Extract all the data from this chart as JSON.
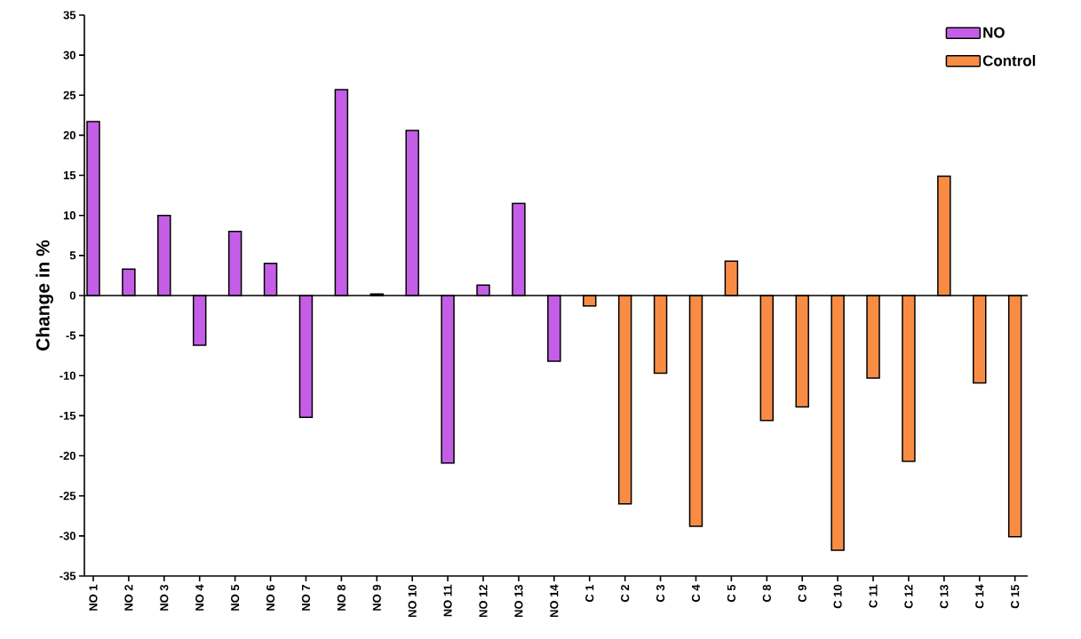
{
  "chart_data": {
    "type": "bar",
    "ylabel": "Change in %",
    "categories": [
      "NO 1",
      "NO 2",
      "NO 3",
      "NO 4",
      "NO 5",
      "NO 6",
      "NO 7",
      "NO 8",
      "NO 9",
      "NO 10",
      "NO 11",
      "NO 12",
      "NO 13",
      "NO 14",
      "C 1",
      "C 2",
      "C 3",
      "C 4",
      "C 5",
      "C 8",
      "C 9",
      "C 10",
      "C 11",
      "C 12",
      "C 13",
      "C 14",
      "C 15"
    ],
    "series": [
      {
        "name": "NO",
        "color": "#c55ee6",
        "values": [
          21.7,
          3.3,
          10,
          -6.2,
          8,
          4,
          -15.2,
          25.7,
          0.2,
          20.6,
          -20.9,
          1.3,
          11.5,
          -8.2,
          null,
          null,
          null,
          null,
          null,
          null,
          null,
          null,
          null,
          null,
          null,
          null,
          null
        ]
      },
      {
        "name": "Control",
        "color": "#f98c45",
        "values": [
          null,
          null,
          null,
          null,
          null,
          null,
          null,
          null,
          null,
          null,
          null,
          null,
          null,
          null,
          -1.3,
          -26,
          -9.7,
          -28.8,
          4.3,
          -15.6,
          -13.9,
          -31.8,
          -10.3,
          -20.7,
          14.9,
          -10.9,
          -30.1
        ]
      }
    ],
    "ylim": [
      -35,
      35
    ],
    "yticks": [
      -35,
      -30,
      -25,
      -20,
      -15,
      -10,
      -5,
      0,
      5,
      10,
      15,
      20,
      25,
      30,
      35
    ],
    "ref_lines": [
      {
        "axis": "y",
        "value": 0
      }
    ],
    "legend": "top right"
  }
}
